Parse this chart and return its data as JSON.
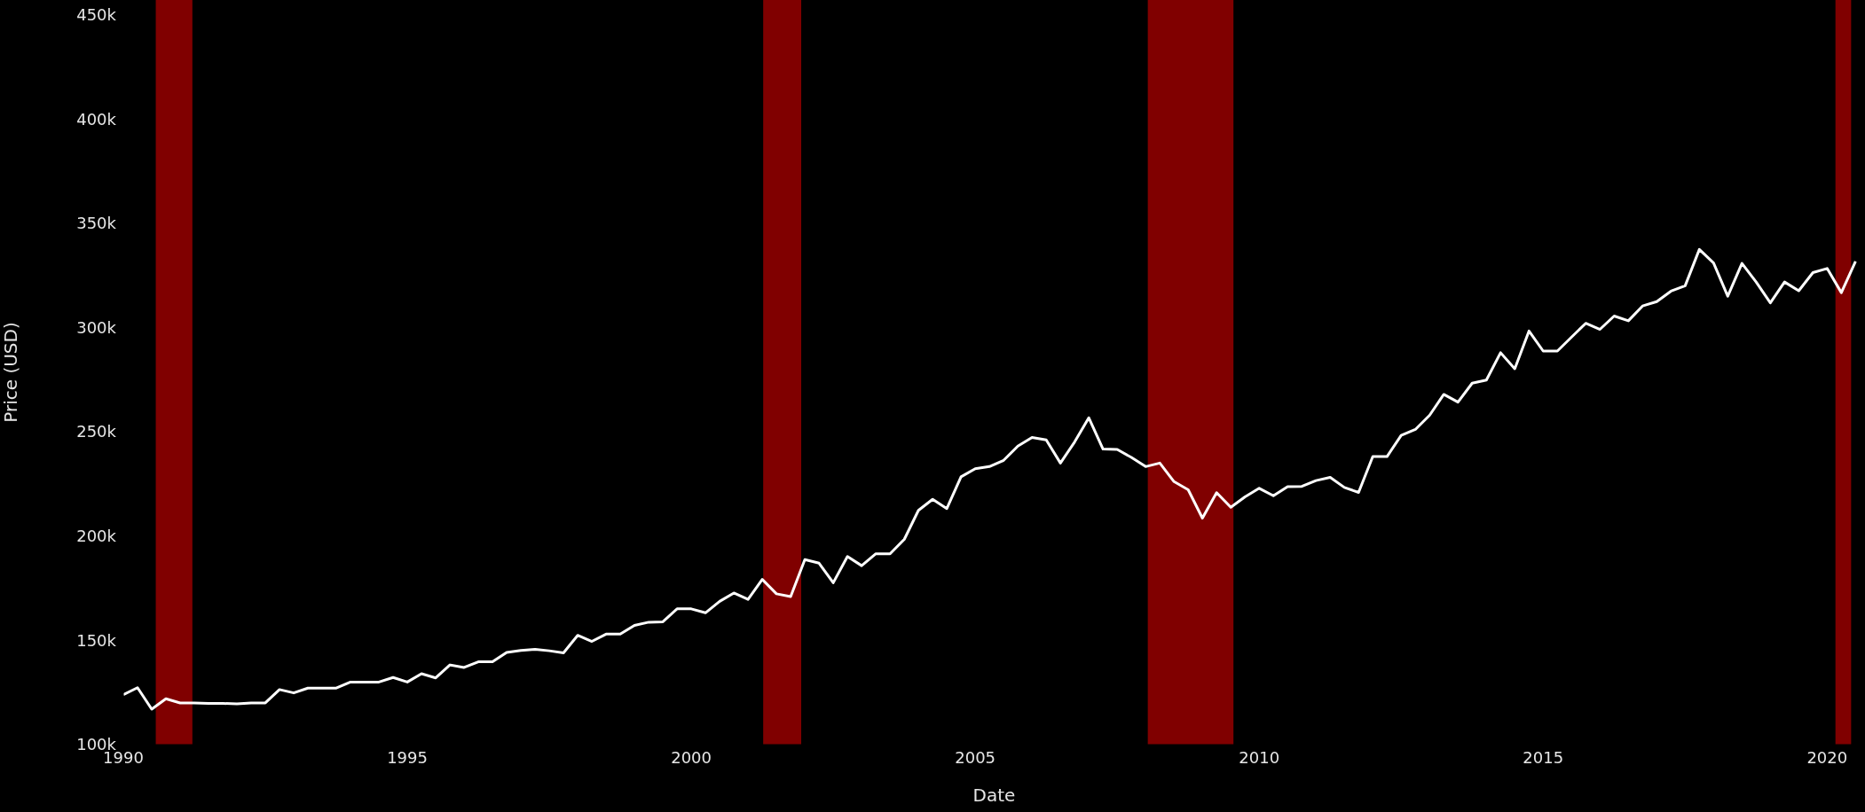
{
  "chart_data": {
    "type": "line",
    "xlabel": "Date",
    "ylabel": "Price (USD)",
    "x": [
      "1990-01",
      "1990-04",
      "1990-07",
      "1990-10",
      "1991-01",
      "1991-04",
      "1991-07",
      "1991-10",
      "1992-01",
      "1992-04",
      "1992-07",
      "1992-10",
      "1993-01",
      "1993-04",
      "1993-07",
      "1993-10",
      "1994-01",
      "1994-04",
      "1994-07",
      "1994-10",
      "1995-01",
      "1995-04",
      "1995-07",
      "1995-10",
      "1996-01",
      "1996-04",
      "1996-07",
      "1996-10",
      "1997-01",
      "1997-04",
      "1997-07",
      "1997-10",
      "1998-01",
      "1998-04",
      "1998-07",
      "1998-10",
      "1999-01",
      "1999-04",
      "1999-07",
      "1999-10",
      "2000-01",
      "2000-04",
      "2000-07",
      "2000-10",
      "2001-01",
      "2001-04",
      "2001-07",
      "2001-10",
      "2002-01",
      "2002-04",
      "2002-07",
      "2002-10",
      "2003-01",
      "2003-04",
      "2003-07",
      "2003-10",
      "2004-01",
      "2004-04",
      "2004-07",
      "2004-10",
      "2005-01",
      "2005-04",
      "2005-07",
      "2005-10",
      "2006-01",
      "2006-04",
      "2006-07",
      "2006-10",
      "2007-01",
      "2007-04",
      "2007-07",
      "2007-10",
      "2008-01",
      "2008-04",
      "2008-07",
      "2008-10",
      "2009-01",
      "2009-04",
      "2009-07",
      "2009-10",
      "2010-01",
      "2010-04",
      "2010-07",
      "2010-10",
      "2011-01",
      "2011-04",
      "2011-07",
      "2011-10",
      "2012-01",
      "2012-04",
      "2012-07",
      "2012-10",
      "2013-01",
      "2013-04",
      "2013-07",
      "2013-10",
      "2014-01",
      "2014-04",
      "2014-07",
      "2014-10",
      "2015-01",
      "2015-04",
      "2015-07",
      "2015-10",
      "2016-01",
      "2016-04",
      "2016-07",
      "2016-10",
      "2017-01",
      "2017-04",
      "2017-07",
      "2017-10",
      "2018-01",
      "2018-04",
      "2018-07",
      "2018-10",
      "2019-01",
      "2019-04",
      "2019-07",
      "2019-10",
      "2020-01",
      "2020-04",
      "2020-07"
    ],
    "series": [
      {
        "color": "#ffffff",
        "values": [
          123900,
          127300,
          117000,
          122000,
          120000,
          120000,
          119800,
          119800,
          119500,
          120000,
          120000,
          126400,
          124800,
          127100,
          127100,
          127100,
          130000,
          130000,
          130000,
          132200,
          130000,
          134000,
          132000,
          138200,
          137000,
          139700,
          139700,
          144200,
          145200,
          145700,
          145000,
          144000,
          152400,
          149500,
          153000,
          153000,
          157200,
          158700,
          158900,
          165100,
          165100,
          163200,
          168700,
          172700,
          169600,
          179200,
          172300,
          171000,
          188700,
          187000,
          177600,
          190200,
          185800,
          191500,
          191500,
          198400,
          212300,
          217600,
          213200,
          228400,
          232300,
          233300,
          236300,
          243100,
          247300,
          246100,
          235000,
          245100,
          256700,
          241700,
          241500,
          237700,
          233300,
          235000,
          226100,
          222200,
          208600,
          220800,
          213800,
          218800,
          222900,
          219300,
          223700,
          223800,
          226600,
          228100,
          223300,
          220900,
          238100,
          238100,
          248300,
          251100,
          257900,
          267900,
          264200,
          273300,
          274800,
          287900,
          280200,
          298300,
          288700,
          288700,
          295400,
          302000,
          299100,
          305500,
          303200,
          310300,
          312400,
          317400,
          320000,
          337400,
          330900,
          315000,
          330700,
          321800,
          311800,
          321800,
          317600,
          326300,
          328300,
          316700,
          331700
        ]
      }
    ],
    "xlim": [
      "1990-01",
      "2020-09"
    ],
    "xticks": [
      {
        "value": "1990",
        "label": "1990"
      },
      {
        "value": "1995",
        "label": "1995"
      },
      {
        "value": "2000",
        "label": "2000"
      },
      {
        "value": "2005",
        "label": "2005"
      },
      {
        "value": "2010",
        "label": "2010"
      },
      {
        "value": "2015",
        "label": "2015"
      },
      {
        "value": "2020",
        "label": "2020"
      }
    ],
    "ylim": [
      100000,
      457000
    ],
    "yticks": [
      {
        "value": 100000,
        "label": "100k"
      },
      {
        "value": 150000,
        "label": "150k"
      },
      {
        "value": 200000,
        "label": "200k"
      },
      {
        "value": 250000,
        "label": "250k"
      },
      {
        "value": 300000,
        "label": "300k"
      },
      {
        "value": 350000,
        "label": "350k"
      },
      {
        "value": 400000,
        "label": "400k"
      },
      {
        "value": 450000,
        "label": "450k"
      }
    ],
    "bands": [
      {
        "axis": "x",
        "from": "1990-07-27",
        "to": "1991-03-19",
        "color": "#800000"
      },
      {
        "axis": "x",
        "from": "2001-04-07",
        "to": "2001-12-08",
        "color": "#800000"
      },
      {
        "axis": "x",
        "from": "2008-01-15",
        "to": "2009-07-18",
        "color": "#800000"
      },
      {
        "axis": "x",
        "from": "2020-02-24",
        "to": "2020-06-03",
        "color": "#800000"
      }
    ],
    "grid": false,
    "marker": "none",
    "line_style": "solid"
  }
}
